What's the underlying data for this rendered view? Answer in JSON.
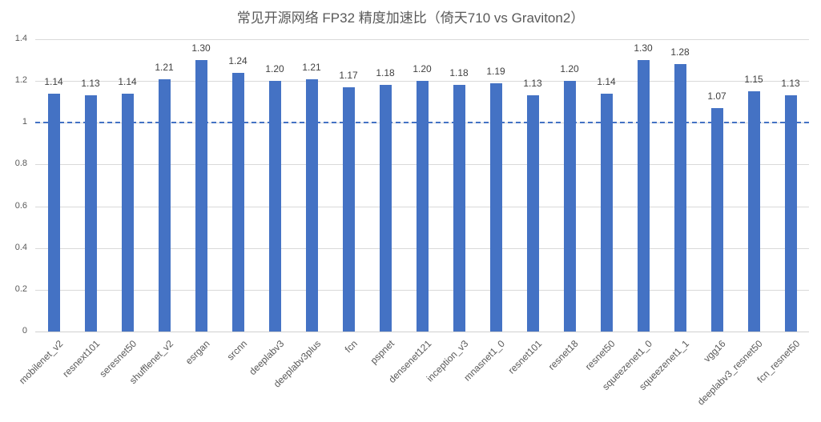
{
  "chart_data": {
    "type": "bar",
    "title": "常见开源网络 FP32 精度加速比（倚天710 vs Graviton2）",
    "xlabel": "",
    "ylabel": "",
    "ylim": [
      0,
      1.4
    ],
    "yticks": [
      "0",
      "0.2",
      "0.4",
      "0.6",
      "0.8",
      "1",
      "1.2",
      "1.4"
    ],
    "grid": true,
    "legend": null,
    "reference_line": {
      "y": 1,
      "style": "dashed",
      "color": "#4472c4"
    },
    "bar_color": "#4472c4",
    "categories": [
      "mobilenet_v2",
      "resnext101",
      "seresnet50",
      "shufflenet_v2",
      "esrgan",
      "srcnn",
      "deeplabv3",
      "deeplabv3plus",
      "fcn",
      "pspnet",
      "densenet121",
      "inception_v3",
      "mnasnet1_0",
      "resnet101",
      "resnet18",
      "resnet50",
      "squeezenet1_0",
      "squeezenet1_1",
      "vgg16",
      "deeplabv3_resnet50",
      "fcn_resnet50"
    ],
    "values": [
      1.14,
      1.13,
      1.14,
      1.21,
      1.3,
      1.24,
      1.2,
      1.21,
      1.17,
      1.18,
      1.2,
      1.18,
      1.19,
      1.13,
      1.2,
      1.14,
      1.3,
      1.28,
      1.07,
      1.15,
      1.13
    ],
    "value_labels": [
      "1.14",
      "1.13",
      "1.14",
      "1.21",
      "1.30",
      "1.24",
      "1.20",
      "1.21",
      "1.17",
      "1.18",
      "1.20",
      "1.18",
      "1.19",
      "1.13",
      "1.20",
      "1.14",
      "1.30",
      "1.28",
      "1.07",
      "1.15",
      "1.13"
    ]
  }
}
